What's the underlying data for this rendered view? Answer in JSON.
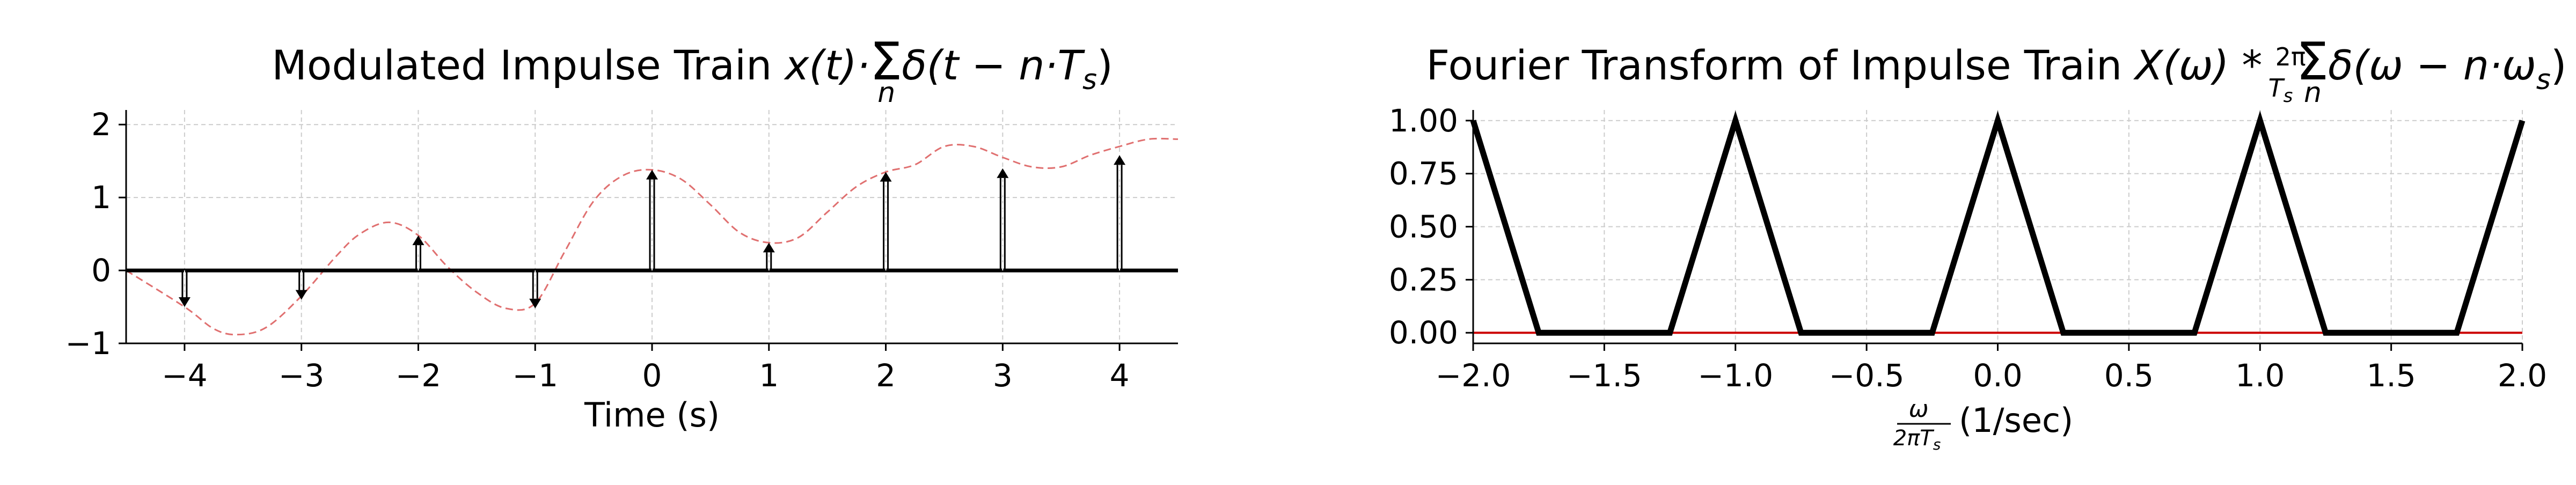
{
  "chart_data": [
    {
      "type": "line",
      "title_text": "Modulated Impulse Train ",
      "title_math": [
        "x(t)·",
        "Σ",
        "n",
        "δ(t − n·T",
        "s",
        ")"
      ],
      "xlabel": "Time (s)",
      "ylabel": "",
      "xlim": [
        -4.5,
        4.5
      ],
      "ylim": [
        -1.0,
        2.2
      ],
      "xticks": [
        -4,
        -3,
        -2,
        -1,
        0,
        1,
        2,
        3,
        4
      ],
      "xtick_labels": [
        "−4",
        "−3",
        "−2",
        "−1",
        "0",
        "1",
        "2",
        "3",
        "4"
      ],
      "yticks": [
        -1,
        0,
        1,
        2
      ],
      "ytick_labels": [
        "−1",
        "0",
        "1",
        "2"
      ],
      "grid": true,
      "series": [
        {
          "kind": "envelope",
          "style": "dashed",
          "color": "#e07070",
          "x": [
            -4.5,
            -4.0,
            -3.75,
            -3.55,
            -3.3,
            -3.0,
            -2.7,
            -2.5,
            -2.25,
            -2.0,
            -1.75,
            -1.5,
            -1.25,
            -1.0,
            -0.75,
            -0.5,
            -0.25,
            0.0,
            0.25,
            0.5,
            0.75,
            1.0,
            1.25,
            1.5,
            1.75,
            2.0,
            2.25,
            2.5,
            2.75,
            3.0,
            3.25,
            3.5,
            3.75,
            4.0,
            4.25,
            4.5
          ],
          "y": [
            0.0,
            -0.5,
            -0.8,
            -0.88,
            -0.78,
            -0.35,
            0.2,
            0.5,
            0.66,
            0.48,
            0.05,
            -0.3,
            -0.52,
            -0.45,
            0.25,
            0.95,
            1.3,
            1.38,
            1.25,
            0.9,
            0.52,
            0.38,
            0.45,
            0.8,
            1.15,
            1.35,
            1.45,
            1.7,
            1.7,
            1.55,
            1.42,
            1.42,
            1.58,
            1.7,
            1.8,
            1.8
          ]
        },
        {
          "kind": "impulses",
          "color": "#000000",
          "x": [
            -4,
            -3,
            -2,
            -1,
            0,
            1,
            2,
            3,
            4
          ],
          "y": [
            -0.5,
            -0.4,
            0.48,
            -0.52,
            1.38,
            0.38,
            1.35,
            1.4,
            1.58
          ]
        }
      ]
    },
    {
      "type": "line",
      "title_text": "Fourier Transform of Impulse Train ",
      "title_math": [
        "X(ω) * ",
        "2π",
        "T",
        "s",
        "Σ",
        "n",
        "δ(ω − n·ω",
        "s",
        ")"
      ],
      "xlabel_frac_num": "ω",
      "xlabel_frac_den": "2πT",
      "xlabel_frac_den_sub": "s",
      "xlabel_units": "(1/sec)",
      "ylabel": "",
      "xlim": [
        -2.0,
        2.0
      ],
      "ylim": [
        -0.05,
        1.05
      ],
      "xticks": [
        -2.0,
        -1.5,
        -1.0,
        -0.5,
        0.0,
        0.5,
        1.0,
        1.5,
        2.0
      ],
      "xtick_labels": [
        "−2.0",
        "−1.5",
        "−1.0",
        "−0.5",
        "0.0",
        "0.5",
        "1.0",
        "1.5",
        "2.0"
      ],
      "yticks": [
        0.0,
        0.25,
        0.5,
        0.75,
        1.0
      ],
      "ytick_labels": [
        "0.00",
        "0.25",
        "0.50",
        "0.75",
        "1.00"
      ],
      "grid": true,
      "series": [
        {
          "kind": "spectrum",
          "color": "#000000",
          "x": [
            -2.0,
            -1.75,
            -1.25,
            -1.0,
            -0.75,
            -0.25,
            0.0,
            0.25,
            0.75,
            1.0,
            1.25,
            1.75,
            2.0
          ],
          "y": [
            1.0,
            0.0,
            0.0,
            1.0,
            0.0,
            0.0,
            1.0,
            0.0,
            0.0,
            1.0,
            0.0,
            0.0,
            1.0
          ]
        },
        {
          "kind": "baseline",
          "color": "#cc0000",
          "x": [
            -2.0,
            2.0
          ],
          "y": [
            0.0,
            0.0
          ]
        }
      ]
    }
  ]
}
